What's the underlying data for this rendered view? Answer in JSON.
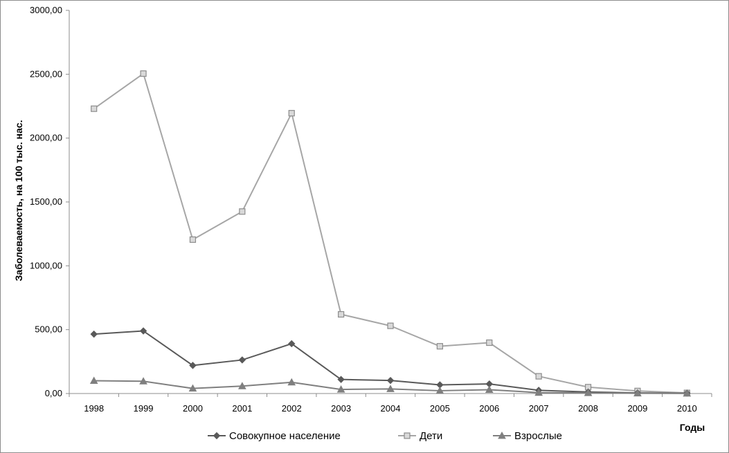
{
  "chart_data": {
    "type": "line",
    "title": "",
    "xlabel": "Годы",
    "ylabel": "Заболеваемость, на 100 тыс. нас.",
    "ylim": [
      0,
      3000
    ],
    "yticks": [
      "0,00",
      "500,00",
      "1000,00",
      "1500,00",
      "2000,00",
      "2500,00",
      "3000,00"
    ],
    "yticks_values": [
      0,
      500,
      1000,
      1500,
      2000,
      2500,
      3000
    ],
    "categories": [
      "1998",
      "1999",
      "2000",
      "2001",
      "2002",
      "2003",
      "2004",
      "2005",
      "2006",
      "2007",
      "2008",
      "2009",
      "2010"
    ],
    "grid": false,
    "legend_position": "bottom",
    "series": [
      {
        "name": "Совокупное население",
        "color": "#595959",
        "marker": "diamond",
        "values": [
          465,
          490,
          220,
          263,
          390,
          110,
          102,
          68,
          75,
          25,
          12,
          5,
          3
        ]
      },
      {
        "name": "Дети",
        "color": "#a6a6a6",
        "marker": "square",
        "values": [
          2230,
          2505,
          1205,
          1425,
          2195,
          620,
          530,
          370,
          398,
          135,
          50,
          20,
          5
        ]
      },
      {
        "name": "Взрослые",
        "color": "#7f7f7f",
        "marker": "triangle",
        "values": [
          100,
          96,
          40,
          58,
          88,
          32,
          36,
          22,
          30,
          7,
          5,
          2,
          1
        ]
      }
    ]
  }
}
